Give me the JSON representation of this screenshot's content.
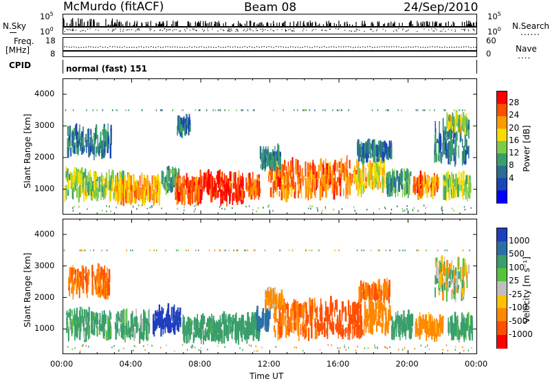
{
  "header": {
    "station": "McMurdo (fitACF)",
    "beam": "Beam 08",
    "date": "24/Sep/2010"
  },
  "side_labels": {
    "nsky": "N.Sky",
    "freq": "Freq.",
    "freq_unit": "[MHz]",
    "cpid": "CPID",
    "nsearch": "N.Search",
    "nave": "Nave",
    "cpid_value": "normal (fast) 151"
  },
  "small_axes": {
    "nsky_ticks": [
      "10^5",
      "10^0"
    ],
    "nsearch_ticks": [
      "10^5",
      "10^0"
    ],
    "freq_ticks": [
      "18",
      "8"
    ],
    "nave_ticks": [
      "60",
      "0"
    ],
    "dotted": "......",
    "dotted_short": "...."
  },
  "chart_data": [
    {
      "type": "heatmap",
      "panel": "power",
      "ylabel": "Slant Range [km]",
      "ylim": [
        200,
        4500
      ],
      "y_ticks": [
        "4000",
        "3000",
        "2000",
        "1000"
      ],
      "y_tick_values": [
        4000,
        3000,
        2000,
        1000
      ],
      "colorbar_label": "Power [dB]",
      "colorbar_ticks": [
        "28",
        "24",
        "20",
        "16",
        "12",
        "8",
        "4"
      ],
      "colorbar_colors": [
        "#ff0000",
        "#ff4f00",
        "#ff9a00",
        "#f6dd00",
        "#7ccc4a",
        "#3a9e6b",
        "#2b6f8f",
        "#1a44b8",
        "#0000ff"
      ],
      "blobs": [
        {
          "t": 1.0,
          "r": 1150,
          "w": 1.8,
          "h": 600,
          "p": 16
        },
        {
          "t": 2.5,
          "r": 1100,
          "w": 2.0,
          "h": 550,
          "p": 16
        },
        {
          "t": 4.3,
          "r": 1000,
          "w": 2.6,
          "h": 500,
          "p": 22
        },
        {
          "t": 6.2,
          "r": 1300,
          "w": 1.0,
          "h": 500,
          "p": 12
        },
        {
          "t": 7.2,
          "r": 1000,
          "w": 1.4,
          "h": 500,
          "p": 26
        },
        {
          "t": 9.2,
          "r": 1050,
          "w": 2.6,
          "h": 600,
          "p": 29
        },
        {
          "t": 11.0,
          "r": 1100,
          "w": 0.8,
          "h": 400,
          "p": 25
        },
        {
          "t": 13.2,
          "r": 1300,
          "w": 2.6,
          "h": 800,
          "p": 24
        },
        {
          "t": 15.6,
          "r": 1350,
          "w": 2.2,
          "h": 800,
          "p": 25
        },
        {
          "t": 17.7,
          "r": 1400,
          "w": 1.8,
          "h": 700,
          "p": 20
        },
        {
          "t": 19.4,
          "r": 1200,
          "w": 1.4,
          "h": 500,
          "p": 12
        },
        {
          "t": 21.0,
          "r": 1100,
          "w": 1.5,
          "h": 400,
          "p": 24
        },
        {
          "t": 22.8,
          "r": 1100,
          "w": 1.6,
          "h": 450,
          "p": 16
        },
        {
          "t": 1.5,
          "r": 2500,
          "w": 2.6,
          "h": 600,
          "p": 8
        },
        {
          "t": 7.0,
          "r": 3000,
          "w": 0.8,
          "h": 300,
          "p": 8
        },
        {
          "t": 12.0,
          "r": 1950,
          "w": 1.2,
          "h": 400,
          "p": 8
        },
        {
          "t": 18.0,
          "r": 2200,
          "w": 2.0,
          "h": 300,
          "p": 8
        },
        {
          "t": 22.5,
          "r": 2500,
          "w": 2.0,
          "h": 900,
          "p": 8
        },
        {
          "t": 22.8,
          "r": 3100,
          "w": 1.2,
          "h": 300,
          "p": 16
        }
      ]
    },
    {
      "type": "heatmap",
      "panel": "velocity",
      "ylabel": "Slant Range [km]",
      "xlabel": "Time UT",
      "ylim": [
        200,
        4500
      ],
      "x_ticks": [
        "00:00",
        "04:00",
        "08:00",
        "12:00",
        "16:00",
        "20:00",
        "00:00"
      ],
      "x_tick_values": [
        0,
        4,
        8,
        12,
        16,
        20,
        24
      ],
      "y_ticks": [
        "4000",
        "3000",
        "2000",
        "1000"
      ],
      "y_tick_values": [
        4000,
        3000,
        2000,
        1000
      ],
      "colorbar_label": "Velocity [m s⁻¹]",
      "colorbar_ticks": [
        "1000",
        "500",
        "100",
        "25",
        "-25",
        "-100",
        "-500",
        "-1000"
      ],
      "colorbar_colors": [
        "#1e3fbf",
        "#2b6fa6",
        "#3a9e6b",
        "#53c43c",
        "#bfbfbf",
        "#ffc200",
        "#ff8800",
        "#ff5000",
        "#ff0000"
      ],
      "blobs": [
        {
          "t": 1.5,
          "r": 1150,
          "w": 2.6,
          "h": 600,
          "v": 100
        },
        {
          "t": 4.0,
          "r": 1100,
          "w": 2.0,
          "h": 550,
          "v": 100
        },
        {
          "t": 6.0,
          "r": 1300,
          "w": 1.6,
          "h": 500,
          "v": 800
        },
        {
          "t": 8.0,
          "r": 1000,
          "w": 2.2,
          "h": 500,
          "v": 150
        },
        {
          "t": 10.2,
          "r": 1050,
          "w": 2.4,
          "h": 500,
          "v": 200
        },
        {
          "t": 11.6,
          "r": 1300,
          "w": 0.8,
          "h": 400,
          "v": 600
        },
        {
          "t": 13.5,
          "r": 1300,
          "w": 2.6,
          "h": 800,
          "v": -300
        },
        {
          "t": 16.0,
          "r": 1350,
          "w": 2.6,
          "h": 800,
          "v": -400
        },
        {
          "t": 18.2,
          "r": 1400,
          "w": 1.6,
          "h": 700,
          "v": -200
        },
        {
          "t": 19.6,
          "r": 1100,
          "w": 1.2,
          "h": 500,
          "v": 200
        },
        {
          "t": 21.2,
          "r": 1050,
          "w": 1.6,
          "h": 400,
          "v": -150
        },
        {
          "t": 23.0,
          "r": 1050,
          "w": 1.4,
          "h": 450,
          "v": 150
        },
        {
          "t": 1.5,
          "r": 2500,
          "w": 2.4,
          "h": 600,
          "v": -300
        },
        {
          "t": 12.2,
          "r": 1950,
          "w": 1.0,
          "h": 300,
          "v": -80
        },
        {
          "t": 18.0,
          "r": 2200,
          "w": 1.8,
          "h": 300,
          "v": -300
        },
        {
          "t": 22.5,
          "r": 2600,
          "w": 2.0,
          "h": 900,
          "v": 0
        }
      ]
    }
  ]
}
